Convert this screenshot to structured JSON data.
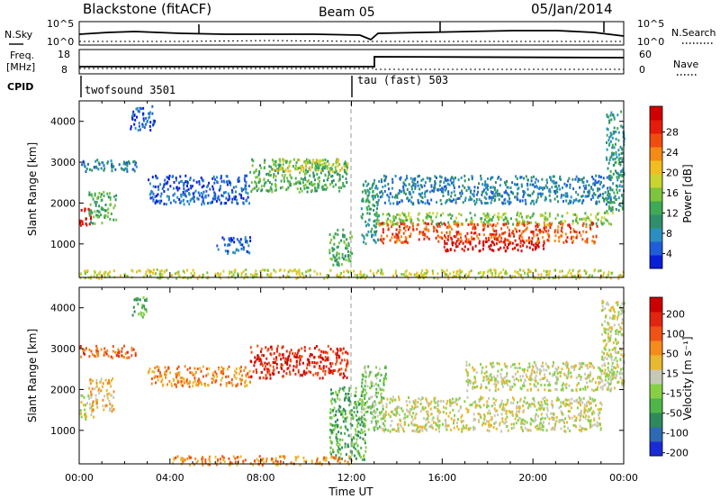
{
  "header": {
    "station": "Blackstone (fitACF)",
    "beam": "Beam 05",
    "date": "05/Jan/2014"
  },
  "top_panel": {
    "left_label": "N.Sky",
    "right_label": "N.Search",
    "left_ticks": [
      "10^5",
      "10^0"
    ],
    "right_ticks": [
      "10^5",
      "10^0"
    ]
  },
  "freq_panel": {
    "left_label_top": "Freq.",
    "left_label_bottom": "[MHz]",
    "right_label": "Nave",
    "left_ticks": [
      "18",
      "8"
    ],
    "right_ticks": [
      "60",
      "0"
    ]
  },
  "cpid": {
    "label": "CPID",
    "programs": [
      {
        "name": "twofsound 3501",
        "start_hour": 0.0
      },
      {
        "name": "tau (fast) 503",
        "start_hour": 12.0
      }
    ]
  },
  "chart_data": [
    {
      "type": "heatmap",
      "name": "power",
      "ylabel": "Slant Range [km]",
      "ylim": [
        180,
        4500
      ],
      "yticks": [
        "1000",
        "2000",
        "3000",
        "4000"
      ],
      "xlim": [
        0,
        24
      ],
      "colorbar": {
        "label": "Power [dB]",
        "ticks": [
          "4",
          "8",
          "12",
          "16",
          "20",
          "24",
          "28"
        ],
        "colors": [
          "#0a1fd8",
          "#1f5ed8",
          "#2a8fbf",
          "#2f8f6a",
          "#3faa55",
          "#7ec43e",
          "#c8d531",
          "#f1bd20",
          "#f58a14",
          "#ee4d0e",
          "#e51b0b",
          "#d00000"
        ]
      },
      "regions": [
        {
          "x": [
            0.0,
            0.5
          ],
          "y": [
            1450,
            1900
          ],
          "level": 11
        },
        {
          "x": [
            0.4,
            1.6
          ],
          "y": [
            1500,
            2300
          ],
          "level": 4
        },
        {
          "x": [
            0.0,
            2.5
          ],
          "y": [
            2800,
            3100
          ],
          "level": 2
        },
        {
          "x": [
            2.2,
            3.3
          ],
          "y": [
            3800,
            4400
          ],
          "level": 1
        },
        {
          "x": [
            3.0,
            7.5
          ],
          "y": [
            2000,
            2700
          ],
          "level": 1
        },
        {
          "x": [
            6.0,
            7.5
          ],
          "y": [
            800,
            1200
          ],
          "level": 1
        },
        {
          "x": [
            7.5,
            11.8
          ],
          "y": [
            2300,
            3100
          ],
          "level": 4
        },
        {
          "x": [
            8.5,
            11.8
          ],
          "y": [
            2800,
            3100
          ],
          "level": 6
        },
        {
          "x": [
            11.0,
            12.0
          ],
          "y": [
            500,
            1400
          ],
          "level": 4
        },
        {
          "x": [
            12.4,
            13.2
          ],
          "y": [
            1000,
            2600
          ],
          "level": 3
        },
        {
          "x": [
            13.2,
            23.4
          ],
          "y": [
            2000,
            2700
          ],
          "level": 2
        },
        {
          "x": [
            13.0,
            23.5
          ],
          "y": [
            1500,
            1800
          ],
          "level": 5
        },
        {
          "x": [
            13.2,
            22.8
          ],
          "y": [
            1050,
            1550
          ],
          "level": 9
        },
        {
          "x": [
            16.0,
            20.5
          ],
          "y": [
            850,
            1100
          ],
          "level": 11
        },
        {
          "x": [
            23.2,
            24.0
          ],
          "y": [
            1800,
            4300
          ],
          "level": 3
        },
        {
          "x": [
            0.0,
            24.0
          ],
          "y": [
            180,
            400
          ],
          "level": 6
        }
      ]
    },
    {
      "type": "heatmap",
      "name": "velocity",
      "ylabel": "Slant Range [km]",
      "ylim": [
        180,
        4500
      ],
      "yticks": [
        "1000",
        "2000",
        "3000",
        "4000"
      ],
      "xlim": [
        0,
        24
      ],
      "xticks": [
        "00:00",
        "04:00",
        "08:00",
        "12:00",
        "16:00",
        "20:00",
        "00:00"
      ],
      "xlabel": "Time UT",
      "colorbar": {
        "label": "Velocity [m s⁻¹]",
        "ticks": [
          "200",
          "100",
          "50",
          "15",
          "-15",
          "-50",
          "-100",
          "-200"
        ],
        "colors": [
          "#1a2bd6",
          "#2e6ab4",
          "#2e8a5c",
          "#4fb548",
          "#87d046",
          "#c8c8b8",
          "#e7b830",
          "#f48b1c",
          "#ef5214",
          "#e22510",
          "#cc0000"
        ]
      },
      "regions": [
        {
          "x": [
            0.0,
            0.6
          ],
          "y": [
            1300,
            1900
          ],
          "level": 5
        },
        {
          "x": [
            0.4,
            1.5
          ],
          "y": [
            1500,
            2300
          ],
          "level": 6
        },
        {
          "x": [
            0.0,
            2.5
          ],
          "y": [
            2800,
            3100
          ],
          "level": 8
        },
        {
          "x": [
            2.3,
            3.0
          ],
          "y": [
            3800,
            4300
          ],
          "level": 3
        },
        {
          "x": [
            3.0,
            7.5
          ],
          "y": [
            2100,
            2600
          ],
          "level": 7
        },
        {
          "x": [
            7.5,
            11.8
          ],
          "y": [
            2300,
            3100
          ],
          "level": 9
        },
        {
          "x": [
            11.0,
            12.6
          ],
          "y": [
            300,
            2100
          ],
          "level": 3
        },
        {
          "x": [
            12.4,
            13.5
          ],
          "y": [
            1000,
            2600
          ],
          "level": 4
        },
        {
          "x": [
            13.2,
            23.0
          ],
          "y": [
            1000,
            1850
          ],
          "level": 5
        },
        {
          "x": [
            17.0,
            23.5
          ],
          "y": [
            2000,
            2700
          ],
          "level": 5
        },
        {
          "x": [
            23.0,
            24.0
          ],
          "y": [
            2000,
            4200
          ],
          "level": 5
        },
        {
          "x": [
            4.0,
            12.0
          ],
          "y": [
            180,
            400
          ],
          "level": 7
        }
      ]
    }
  ]
}
